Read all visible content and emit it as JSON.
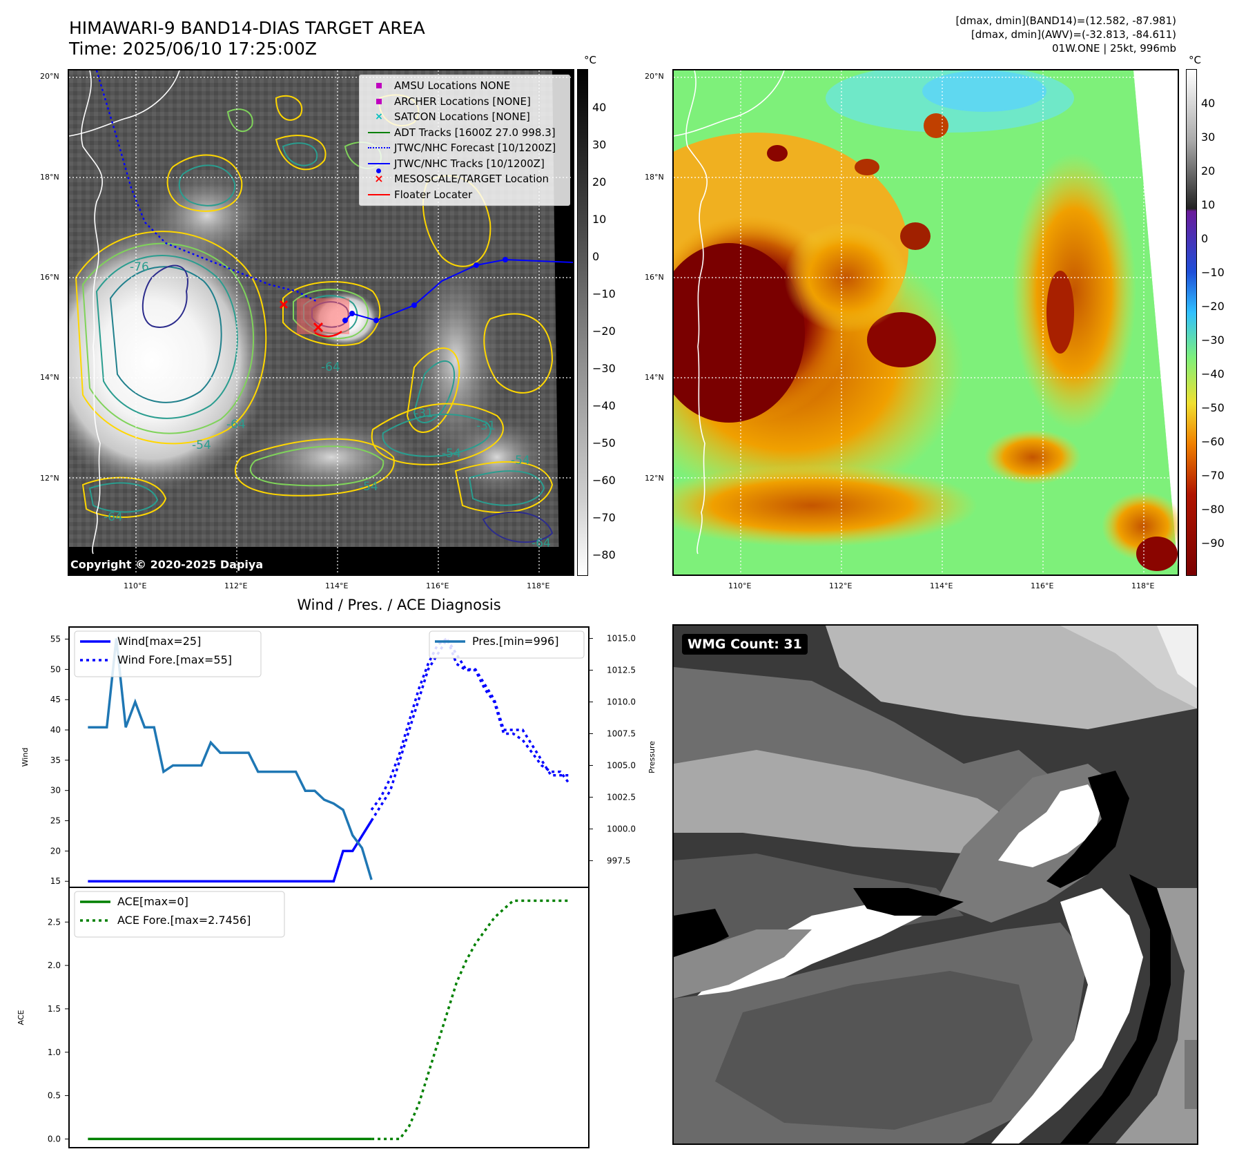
{
  "title": {
    "line1": "HIMAWARI-9 BAND14-DIAS TARGET AREA",
    "line2": "Time: 2025/06/10 17:25:00Z"
  },
  "info": {
    "line1": "[dmax, dmin](BAND14)=(12.582, -87.981)",
    "line2": "[dmax, dmin](AWV)=(-32.813, -84.611)",
    "line3": "01W.ONE | 25kt, 996mb"
  },
  "map": {
    "lat_labels": [
      "20°N",
      "18°N",
      "16°N",
      "14°N",
      "12°N"
    ],
    "lon_labels": [
      "110°E",
      "112°E",
      "114°E",
      "116°E",
      "118°E"
    ],
    "copyright": "Copyright © 2020-2025 Dapiya",
    "contour_labels": [
      "-76",
      "-64",
      "-64",
      "-64",
      "-54",
      "-54",
      "-54",
      "-54",
      "-31",
      "-31",
      "-64"
    ],
    "legend": [
      {
        "label": "AMSU Locations NONE",
        "symbol": "square",
        "color": "#bf00bf"
      },
      {
        "label": "ARCHER Locations [NONE]",
        "symbol": "square",
        "color": "#bf00bf"
      },
      {
        "label": "SATCON Locations [NONE]",
        "symbol": "x",
        "color": "#00bfbf"
      },
      {
        "label": "ADT Tracks [1600Z 27.0 998.3]",
        "symbol": "line",
        "color": "#008000"
      },
      {
        "label": "JTWC/NHC Forecast [10/1200Z]",
        "symbol": "dotted",
        "color": "#0000ff"
      },
      {
        "label": "JTWC/NHC Tracks [10/1200Z]",
        "symbol": "line-dot",
        "color": "#0000ff"
      },
      {
        "label": "MESOSCALE/TARGET Location",
        "symbol": "x",
        "color": "#ff0000"
      },
      {
        "label": "Floater Locater",
        "symbol": "line",
        "color": "#ff0000"
      }
    ]
  },
  "colorbar_left": {
    "unit": "°C",
    "ticks": [
      "40",
      "30",
      "20",
      "10",
      "0",
      "−10",
      "−20",
      "−30",
      "−40",
      "−50",
      "−60",
      "−70",
      "−80"
    ]
  },
  "colorbar_right": {
    "unit": "°C",
    "ticks": [
      "40",
      "30",
      "20",
      "10",
      "0",
      "−10",
      "−20",
      "−30",
      "−40",
      "−50",
      "−60",
      "−70",
      "−80",
      "−90"
    ]
  },
  "wmg": {
    "label": "WMG Count: 31"
  },
  "diagnosis": {
    "title": "Wind / Pres. / ACE Diagnosis"
  },
  "chart_data": [
    {
      "type": "line",
      "title": "Wind / Pres. / ACE Diagnosis",
      "ylabel": "Wind",
      "y2label": "Pressure",
      "ylim": [
        14,
        57
      ],
      "y2lim": [
        995.4,
        1015.9
      ],
      "yticks": [
        "55",
        "50",
        "45",
        "40",
        "35",
        "30",
        "25",
        "20",
        "15"
      ],
      "y2ticks": [
        "1015.0",
        "1012.5",
        "1010.0",
        "1007.5",
        "1005.0",
        "1002.5",
        "1000.0",
        "997.5"
      ],
      "x_count": 52,
      "series": [
        {
          "name": "Wind[max=25]",
          "axis": "left",
          "style": "solid",
          "color": "#0000ff",
          "x": [
            0,
            26,
            27,
            28,
            29,
            30
          ],
          "y": [
            15,
            15,
            20,
            20,
            22.5,
            25
          ]
        },
        {
          "name": "Wind Fore.[max=55]",
          "axis": "left",
          "style": "dotted",
          "color": "#0000ff",
          "x": [
            30,
            31,
            32,
            33,
            34,
            35,
            36,
            37,
            38,
            39,
            40,
            41,
            42,
            43,
            44,
            45,
            46,
            47,
            48,
            49,
            50,
            51
          ],
          "y": [
            25,
            27.5,
            30,
            35,
            40,
            45,
            50,
            52.5,
            55,
            52.5,
            50,
            50,
            47.5,
            45,
            40,
            40,
            40,
            37.5,
            35,
            32.5,
            32.5,
            32.5
          ]
        },
        {
          "name": "Pres.[min=996]",
          "axis": "right",
          "style": "solid",
          "color": "#1f77b4",
          "x": [
            0,
            1,
            2,
            3,
            4,
            5,
            6,
            7,
            8,
            9,
            10,
            11,
            12,
            13,
            14,
            15,
            16,
            17,
            18,
            19,
            20,
            21,
            22,
            23,
            24,
            25,
            26,
            27,
            28,
            29,
            30
          ],
          "y": [
            1008,
            1008,
            1008,
            1015,
            1008,
            1010,
            1008,
            1008,
            1004.5,
            1005,
            1005,
            1005,
            1005,
            1006.8,
            1006,
            1006,
            1006,
            1006,
            1004.5,
            1004.5,
            1004.5,
            1004.5,
            1004.5,
            1003,
            1003,
            1002.3,
            1002,
            1001.5,
            999.5,
            998.5,
            996
          ]
        },
        {
          "name": "",
          "axis": "right",
          "style": "dotted",
          "color": "#0000ff",
          "x": [
            30,
            31,
            32,
            33,
            34,
            35,
            36,
            37,
            38,
            39,
            40,
            41,
            42,
            43,
            44,
            45,
            46,
            47,
            48,
            49,
            50,
            51
          ],
          "y": [
            1001.5,
            1002.5,
            1004,
            1006,
            1008.5,
            1011,
            1013,
            1014.5,
            1015,
            1013,
            1012.5,
            1012.5,
            1011,
            1010,
            1007.5,
            1007.5,
            1007,
            1006,
            1005,
            1004.5,
            1004.5,
            1003.5
          ]
        }
      ],
      "legend": [
        {
          "label": "Wind[max=25]",
          "style": "solid",
          "color": "#0000ff"
        },
        {
          "label": "Wind Fore.[max=55]",
          "style": "dotted",
          "color": "#0000ff"
        },
        {
          "label": "Pres.[min=996]",
          "style": "solid",
          "color": "#1f77b4"
        }
      ]
    },
    {
      "type": "line",
      "ylabel": "ACE",
      "ylim": [
        -0.1,
        2.9
      ],
      "yticks": [
        "2.5",
        "2.0",
        "1.5",
        "1.0",
        "0.5",
        "0.0"
      ],
      "series": [
        {
          "name": "ACE[max=0]",
          "style": "solid",
          "color": "#008000",
          "x": [
            0,
            30
          ],
          "y": [
            0,
            0
          ]
        },
        {
          "name": "ACE Fore.[max=2.7456]",
          "style": "dotted",
          "color": "#008000",
          "x": [
            30,
            31,
            32,
            33,
            34,
            35,
            36,
            37,
            38,
            39,
            40,
            41,
            42,
            43,
            44,
            45,
            46,
            47,
            48,
            49,
            50,
            51
          ],
          "y": [
            0,
            0,
            0,
            0,
            0.15,
            0.4,
            0.75,
            1.1,
            1.45,
            1.8,
            2.05,
            2.25,
            2.4,
            2.55,
            2.65,
            2.7456,
            2.7456,
            2.7456,
            2.7456,
            2.7456,
            2.7456,
            2.7456
          ]
        }
      ],
      "legend": [
        {
          "label": "ACE[max=0]",
          "style": "solid",
          "color": "#008000"
        },
        {
          "label": "ACE Fore.[max=2.7456]",
          "style": "dotted",
          "color": "#008000"
        }
      ]
    }
  ]
}
